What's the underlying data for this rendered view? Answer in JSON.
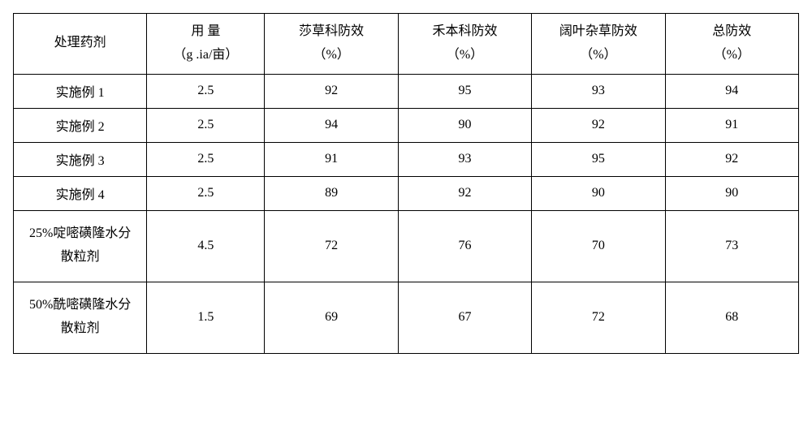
{
  "table": {
    "type": "table",
    "background_color": "#ffffff",
    "border_color": "#000000",
    "font_family": "SimSun",
    "font_size": 16,
    "text_color": "#000000",
    "columns": [
      {
        "key": "treatment",
        "label_line1": "处理药剂",
        "label_line2": "",
        "width_pct": 17
      },
      {
        "key": "dosage",
        "label_line1": "用 量",
        "label_line2": "（g .ia/亩）",
        "width_pct": 15
      },
      {
        "key": "sedge",
        "label_line1": "莎草科防效",
        "label_line2": "（%）",
        "width_pct": 17
      },
      {
        "key": "grass",
        "label_line1": "禾本科防效",
        "label_line2": "（%）",
        "width_pct": 17
      },
      {
        "key": "broadleaf",
        "label_line1": "阔叶杂草防效",
        "label_line2": "（%）",
        "width_pct": 17
      },
      {
        "key": "total",
        "label_line1": "总防效",
        "label_line2": "（%）",
        "width_pct": 17
      }
    ],
    "rows": [
      {
        "treatment": "实施例 1",
        "dosage": "2.5",
        "sedge": "92",
        "grass": "95",
        "broadleaf": "93",
        "total": "94",
        "tall": false
      },
      {
        "treatment": "实施例 2",
        "dosage": "2.5",
        "sedge": "94",
        "grass": "90",
        "broadleaf": "92",
        "total": "91",
        "tall": false
      },
      {
        "treatment": "实施例 3",
        "dosage": "2.5",
        "sedge": "91",
        "grass": "93",
        "broadleaf": "95",
        "total": "92",
        "tall": false
      },
      {
        "treatment": "实施例 4",
        "dosage": "2.5",
        "sedge": "89",
        "grass": "92",
        "broadleaf": "90",
        "total": "90",
        "tall": false
      },
      {
        "treatment_line1": "25%啶嘧磺隆水分",
        "treatment_line2": "散粒剂",
        "dosage": "4.5",
        "sedge": "72",
        "grass": "76",
        "broadleaf": "70",
        "total": "73",
        "tall": true
      },
      {
        "treatment_line1": "50%酰嘧磺隆水分",
        "treatment_line2": "散粒剂",
        "dosage": "1.5",
        "sedge": "69",
        "grass": "67",
        "broadleaf": "72",
        "total": "68",
        "tall": true
      }
    ]
  }
}
